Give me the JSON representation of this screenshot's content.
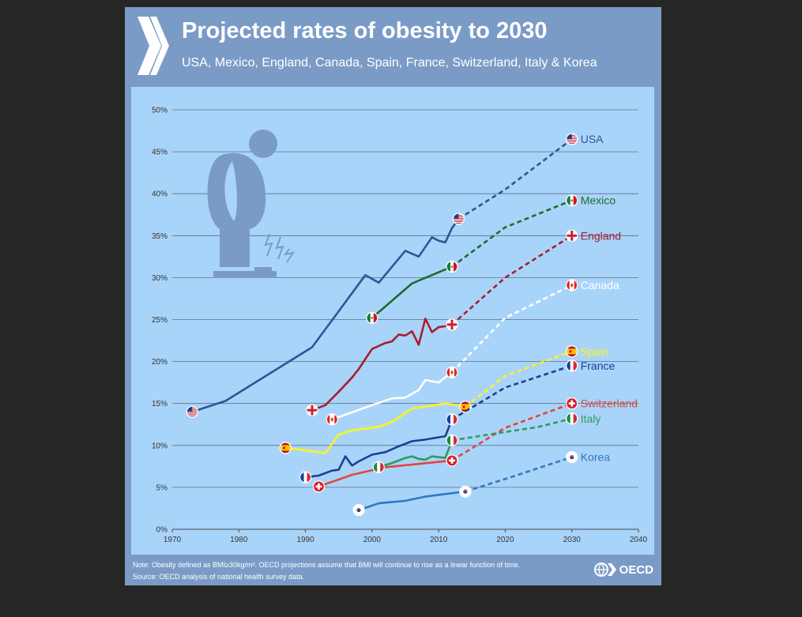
{
  "header": {
    "title": "Projected rates of obesity to 2030",
    "subtitle": "USA, Mexico, England, Canada, Spain, France, Switzerland, Italy & Korea"
  },
  "footer": {
    "note": "Note: Obesity defined as BMI≥30kg/m². OECD projections assume that BMI will continue to rise as a linear function of time.",
    "source": "Source: OECD analysis of national health survey data.",
    "logo_text": "OECD"
  },
  "colors": {
    "card": "#7b9bc7",
    "panel": "#a9d4f9",
    "figure": "#7b9bc7"
  },
  "chart_data": {
    "type": "line",
    "xlim": [
      1970,
      2040
    ],
    "ylim": [
      0,
      50
    ],
    "x_ticks": [
      "1970",
      "1980",
      "1990",
      "2000",
      "2010",
      "2020",
      "2030",
      "2040"
    ],
    "y_ticks": [
      "0%",
      "5%",
      "10%",
      "15%",
      "20%",
      "25%",
      "30%",
      "35%",
      "40%",
      "45%",
      "50%"
    ],
    "grid": "horizontal",
    "legend": "labels at line ends (right)",
    "series": [
      {
        "name": "USA",
        "color": "#2d5597",
        "label_color": "#2d5597",
        "flag": "usa",
        "observed": [
          [
            1973,
            14
          ],
          [
            1978,
            15.3
          ],
          [
            1991,
            21.7
          ],
          [
            1999,
            30.3
          ],
          [
            2001,
            29.4
          ],
          [
            2005,
            33.2
          ],
          [
            2007,
            32.5
          ],
          [
            2009,
            34.8
          ],
          [
            2010,
            34.4
          ],
          [
            2011,
            34.2
          ],
          [
            2012,
            35.9
          ],
          [
            2013,
            37
          ]
        ],
        "projected": [
          [
            2013,
            37
          ],
          [
            2020,
            40.5
          ],
          [
            2030,
            46.5
          ]
        ]
      },
      {
        "name": "Mexico",
        "color": "#1a6e2a",
        "label_color": "#1a6e2a",
        "flag": "mexico",
        "observed": [
          [
            2000,
            25.2
          ],
          [
            2006,
            29.3
          ],
          [
            2012,
            31.3
          ]
        ],
        "projected": [
          [
            2012,
            31.3
          ],
          [
            2020,
            36
          ],
          [
            2030,
            39.2
          ]
        ]
      },
      {
        "name": "England",
        "color": "#a71e2e",
        "label_color": "#a71e2e",
        "flag": "england",
        "observed": [
          [
            1991,
            14.2
          ],
          [
            1993,
            14.8
          ],
          [
            1995,
            16.4
          ],
          [
            1997,
            18.1
          ],
          [
            1998,
            19.1
          ],
          [
            1999,
            20.3
          ],
          [
            2000,
            21.5
          ],
          [
            2002,
            22.2
          ],
          [
            2003,
            22.4
          ],
          [
            2004,
            23.2
          ],
          [
            2005,
            23.1
          ],
          [
            2006,
            23.6
          ],
          [
            2007,
            22
          ],
          [
            2008,
            25.1
          ],
          [
            2009,
            23.5
          ],
          [
            2010,
            24.1
          ],
          [
            2011,
            24.2
          ],
          [
            2012,
            24.4
          ]
        ],
        "projected": [
          [
            2012,
            24.4
          ],
          [
            2020,
            30
          ],
          [
            2030,
            35
          ]
        ]
      },
      {
        "name": "Canada",
        "color": "#ffffff",
        "label_color": "#ffffff",
        "flag": "canada",
        "observed": [
          [
            1994,
            13.1
          ],
          [
            2000,
            14.8
          ],
          [
            2003,
            15.6
          ],
          [
            2005,
            15.7
          ],
          [
            2007,
            16.6
          ],
          [
            2008,
            17.8
          ],
          [
            2010,
            17.5
          ],
          [
            2012,
            18.7
          ]
        ],
        "projected": [
          [
            2012,
            18.7
          ],
          [
            2020,
            25.2
          ],
          [
            2030,
            29.1
          ]
        ]
      },
      {
        "name": "Spain",
        "color": "#fff21d",
        "label_color": "#fff21d",
        "flag": "spain",
        "observed": [
          [
            1987,
            9.7
          ],
          [
            1993,
            9.1
          ],
          [
            1995,
            11.3
          ],
          [
            1997,
            11.8
          ],
          [
            2001,
            12.2
          ],
          [
            2003,
            12.8
          ],
          [
            2006,
            14.4
          ],
          [
            2011,
            15.0
          ],
          [
            2014,
            14.6
          ]
        ],
        "projected": [
          [
            2014,
            14.6
          ],
          [
            2020,
            18.3
          ],
          [
            2030,
            21.2
          ]
        ]
      },
      {
        "name": "France",
        "color": "#1e3f93",
        "label_color": "#1e3f93",
        "flag": "france",
        "observed": [
          [
            1990,
            6.2
          ],
          [
            1992,
            6.4
          ],
          [
            1994,
            7
          ],
          [
            1995,
            7.1
          ],
          [
            1996,
            8.7
          ],
          [
            1997,
            7.6
          ],
          [
            1998,
            8.1
          ],
          [
            2000,
            8.9
          ],
          [
            2002,
            9.2
          ],
          [
            2004,
            9.9
          ],
          [
            2006,
            10.5
          ],
          [
            2008,
            10.7
          ],
          [
            2011,
            11.1
          ],
          [
            2012,
            13.1
          ]
        ],
        "projected": [
          [
            2012,
            13.1
          ],
          [
            2020,
            16.9
          ],
          [
            2030,
            19.5
          ]
        ]
      },
      {
        "name": "Switzerland",
        "color": "#e1473a",
        "label_color": "#e1473a",
        "flag": "switzerland",
        "observed": [
          [
            1992,
            5.1
          ],
          [
            1997,
            6.5
          ],
          [
            2002,
            7.4
          ],
          [
            2007,
            7.8
          ],
          [
            2012,
            8.2
          ]
        ],
        "projected": [
          [
            2012,
            8.2
          ],
          [
            2020,
            12.1
          ],
          [
            2030,
            15
          ]
        ]
      },
      {
        "name": "Italy",
        "color": "#2f9a5e",
        "label_color": "#2f9a5e",
        "flag": "italy",
        "observed": [
          [
            2001,
            7.4
          ],
          [
            2003,
            7.9
          ],
          [
            2005,
            8.5
          ],
          [
            2006,
            8.7
          ],
          [
            2007,
            8.4
          ],
          [
            2008,
            8.3
          ],
          [
            2009,
            8.7
          ],
          [
            2010,
            8.6
          ],
          [
            2011,
            8.5
          ],
          [
            2012,
            10.6
          ]
        ],
        "projected": [
          [
            2012,
            10.6
          ],
          [
            2020,
            11.6
          ],
          [
            2025,
            12.2
          ],
          [
            2030,
            13.2
          ]
        ]
      },
      {
        "name": "Korea",
        "color": "#2e78c4",
        "label_color": "#2e78c4",
        "flag": "korea",
        "observed": [
          [
            1998,
            2.3
          ],
          [
            2001,
            3.1
          ],
          [
            2005,
            3.4
          ],
          [
            2008,
            3.9
          ],
          [
            2012,
            4.3
          ],
          [
            2014,
            4.5
          ]
        ],
        "projected": [
          [
            2014,
            4.5
          ],
          [
            2020,
            6
          ],
          [
            2030,
            8.6
          ]
        ]
      }
    ]
  }
}
